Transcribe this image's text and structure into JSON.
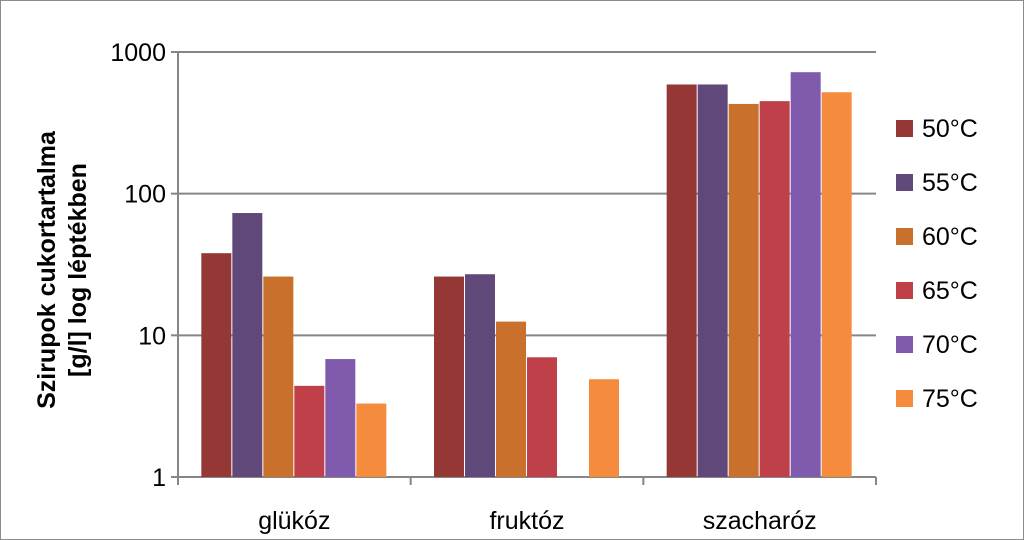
{
  "chart_data": {
    "type": "bar",
    "ylabel": [
      "Szirupok cukortartalma",
      "[g/l] log léptékben"
    ],
    "yscale": "log",
    "ylim": [
      1,
      1000
    ],
    "yticks": [
      "1",
      "10",
      "100",
      "1000"
    ],
    "grid": "horizontal",
    "legend_position": "right",
    "categories": [
      "glükóz",
      "fruktóz",
      "szacharóz"
    ],
    "series": [
      {
        "name": "50°C",
        "color": "#953735",
        "values": [
          38,
          26,
          590
        ]
      },
      {
        "name": "55°C",
        "color": "#60497a",
        "values": [
          73,
          27,
          590
        ]
      },
      {
        "name": "60°C",
        "color": "#c8702c",
        "values": [
          26,
          12.5,
          430
        ]
      },
      {
        "name": "65°C",
        "color": "#c0404a",
        "values": [
          4.4,
          7,
          450
        ]
      },
      {
        "name": "70°C",
        "color": "#7f5aad",
        "values": [
          6.8,
          null,
          720
        ]
      },
      {
        "name": "75°C",
        "color": "#f58b3c",
        "values": [
          3.3,
          4.9,
          520
        ]
      }
    ]
  }
}
